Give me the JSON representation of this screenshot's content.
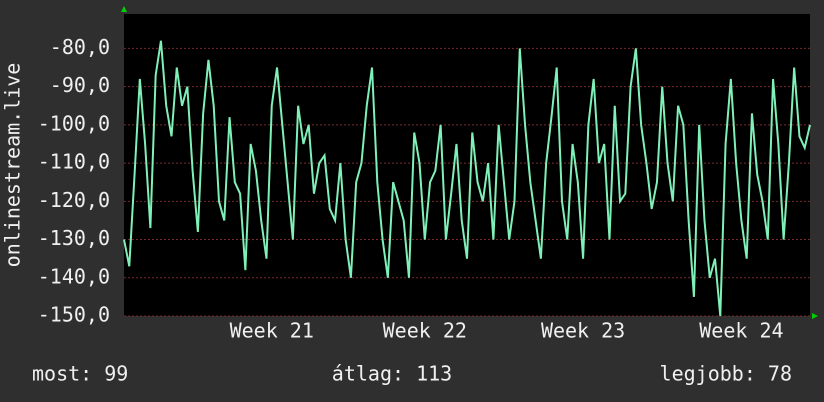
{
  "chart_data": {
    "type": "line",
    "y_label": "onlinestream.live",
    "x": [
      0,
      1,
      2,
      3,
      4,
      5,
      6,
      7,
      8,
      9,
      10,
      11,
      12,
      13,
      14,
      15,
      16,
      17,
      18,
      19,
      20,
      21,
      22,
      23,
      24,
      25,
      26,
      27,
      28,
      29,
      30,
      31,
      32,
      33,
      34,
      35,
      36,
      37,
      38,
      39,
      40,
      41,
      42,
      43,
      44,
      45,
      46,
      47,
      48,
      49,
      50,
      51,
      52,
      53,
      54,
      55,
      56,
      57,
      58,
      59,
      60,
      61,
      62,
      63,
      64,
      65,
      66,
      67,
      68,
      69,
      70,
      71,
      72,
      73,
      74,
      75,
      76,
      77,
      78,
      79,
      80,
      81,
      82,
      83,
      84,
      85,
      86,
      87,
      88,
      89,
      90,
      91,
      92,
      93,
      94,
      95,
      96,
      97,
      98,
      99,
      100,
      101,
      102,
      103,
      104,
      105,
      106,
      107,
      108,
      109,
      110,
      111,
      112,
      113,
      114,
      115,
      116,
      117,
      118,
      119,
      120,
      121,
      122,
      123,
      124,
      125,
      126,
      127,
      128,
      129,
      130
    ],
    "series": [
      {
        "name": "onlinestream.live",
        "color": "#7ff0b8",
        "values": [
          -130,
          -137,
          -113,
          -88,
          -105,
          -127,
          -87,
          -78,
          -95,
          -103,
          -85,
          -95,
          -90,
          -112,
          -128,
          -97,
          -83,
          -95,
          -120,
          -125,
          -98,
          -115,
          -118,
          -138,
          -105,
          -112,
          -125,
          -135,
          -95,
          -85,
          -100,
          -115,
          -130,
          -95,
          -105,
          -100,
          -118,
          -110,
          -108,
          -122,
          -125,
          -110,
          -130,
          -140,
          -115,
          -110,
          -95,
          -85,
          -115,
          -130,
          -140,
          -115,
          -120,
          -125,
          -140,
          -102,
          -110,
          -130,
          -115,
          -112,
          -100,
          -130,
          -118,
          -105,
          -125,
          -135,
          -102,
          -115,
          -120,
          -110,
          -130,
          -100,
          -115,
          -130,
          -120,
          -80,
          -100,
          -115,
          -125,
          -135,
          -110,
          -98,
          -85,
          -120,
          -130,
          -105,
          -115,
          -135,
          -100,
          -88,
          -110,
          -105,
          -130,
          -95,
          -120,
          -118,
          -90,
          -80,
          -100,
          -110,
          -122,
          -115,
          -90,
          -110,
          -120,
          -95,
          -100,
          -125,
          -145,
          -100,
          -125,
          -140,
          -135,
          -150,
          -105,
          -88,
          -110,
          -125,
          -135,
          -97,
          -113,
          -120,
          -130,
          -88,
          -105,
          -130,
          -110,
          -85,
          -103,
          -106,
          -100
        ]
      }
    ],
    "xlim": [
      0,
      130
    ],
    "xticks": [
      {
        "value": 28,
        "label": "Week 21"
      },
      {
        "value": 57,
        "label": "Week 22"
      },
      {
        "value": 87,
        "label": "Week 23"
      },
      {
        "value": 117,
        "label": "Week 24"
      }
    ],
    "ylim": [
      -150,
      -71
    ],
    "yticks": [
      {
        "value": -150,
        "label": "-150,0"
      },
      {
        "value": -140,
        "label": "-140,0"
      },
      {
        "value": -130,
        "label": "-130,0"
      },
      {
        "value": -120,
        "label": "-120,0"
      },
      {
        "value": -110,
        "label": "-110,0"
      },
      {
        "value": -100,
        "label": "-100,0"
      },
      {
        "value": -90,
        "label": "-90,0"
      },
      {
        "value": -80,
        "label": "-80,0"
      }
    ],
    "grid": true,
    "footer": {
      "current": "most: 99",
      "average": "átlag: 113",
      "best": "legjobb: 78"
    }
  }
}
